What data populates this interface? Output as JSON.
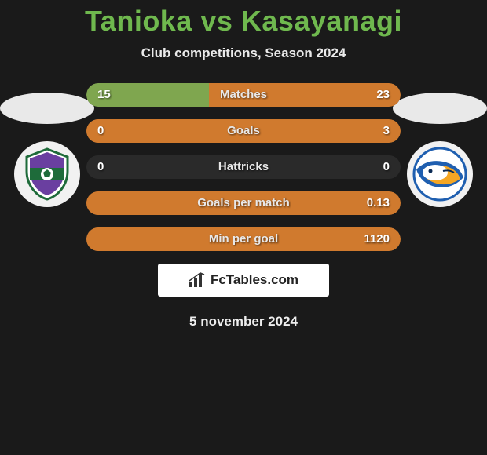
{
  "title": {
    "text": "Tanioka vs Kasayanagi",
    "color": "#6fb84e",
    "fontsize": 36
  },
  "subtitle": "Club competitions, Season 2024",
  "footer_date": "5 november 2024",
  "logo_text": "FcTables.com",
  "colors": {
    "background": "#1a1a1a",
    "ellipse": "#e9e9e9",
    "row_track": "#2a2a2a",
    "fill_left": "#7fa64f",
    "fill_right": "#d07a2e",
    "label_text": "#e8e8e8",
    "value_text": "#ffffff"
  },
  "rows": [
    {
      "label": "Matches",
      "left": "15",
      "right": "23",
      "left_pct": 39,
      "right_pct": 61
    },
    {
      "label": "Goals",
      "left": "0",
      "right": "3",
      "left_pct": 0,
      "right_pct": 100
    },
    {
      "label": "Hattricks",
      "left": "0",
      "right": "0",
      "left_pct": 0,
      "right_pct": 0
    },
    {
      "label": "Goals per match",
      "left": "",
      "right": "0.13",
      "left_pct": 0,
      "right_pct": 100
    },
    {
      "label": "Min per goal",
      "left": "",
      "right": "1120",
      "left_pct": 0,
      "right_pct": 100
    }
  ],
  "badges": {
    "left": {
      "name": "club-badge-left",
      "primary": "#1e6b3a",
      "secondary": "#6a3fa0",
      "accent": "#ffffff"
    },
    "right": {
      "name": "club-badge-right",
      "primary": "#1f5fb0",
      "secondary": "#f5a623",
      "accent": "#ffffff"
    }
  }
}
